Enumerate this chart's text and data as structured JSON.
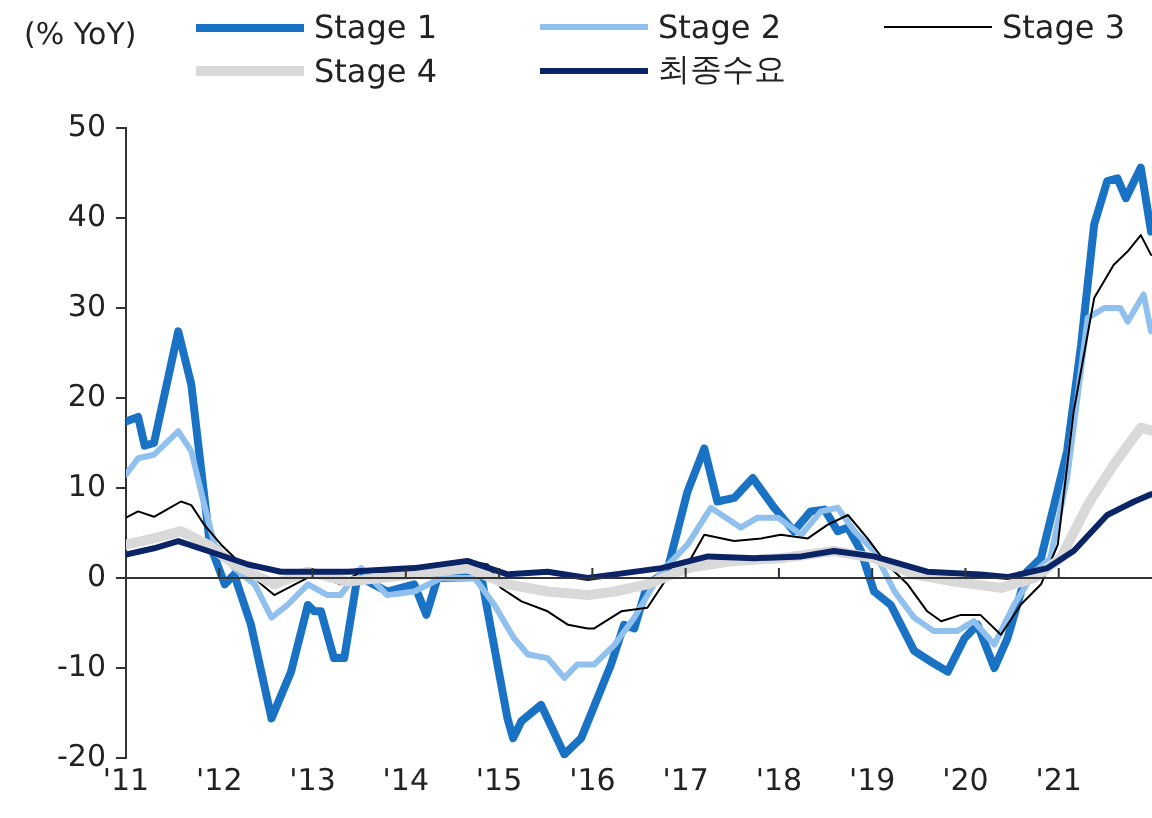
{
  "chart_data": {
    "type": "line",
    "ylabel": "(% YoY)",
    "xlim": [
      2011,
      2022
    ],
    "ylim": [
      -20,
      50
    ],
    "yticks": [
      -20,
      -10,
      0,
      10,
      20,
      30,
      40,
      50
    ],
    "xticks": [
      {
        "value": 2011,
        "label": "'11"
      },
      {
        "value": 2012,
        "label": "'12"
      },
      {
        "value": 2013,
        "label": "'13"
      },
      {
        "value": 2014,
        "label": "'14"
      },
      {
        "value": 2015,
        "label": "'15"
      },
      {
        "value": 2016,
        "label": "'16"
      },
      {
        "value": 2017,
        "label": "'17"
      },
      {
        "value": 2018,
        "label": "'18"
      },
      {
        "value": 2019,
        "label": "'19"
      },
      {
        "value": 2020,
        "label": "'20"
      },
      {
        "value": 2021,
        "label": "'21"
      }
    ],
    "grid": false,
    "ref_lines": [
      {
        "axis": "y",
        "value": 0,
        "color": "#333333"
      }
    ],
    "legend": "top",
    "marker": "none",
    "line_style": "solid",
    "series": [
      {
        "name": "Stage 1",
        "color": "#1a72c4",
        "x": [
          2011.0,
          2011.13,
          2011.2,
          2011.3,
          2011.56,
          2011.7,
          2011.8,
          2011.9,
          2012.06,
          2012.16,
          2012.34,
          2012.56,
          2012.77,
          2012.95,
          2013.02,
          2013.09,
          2013.23,
          2013.34,
          2013.49,
          2013.6,
          2013.8,
          2014.09,
          2014.22,
          2014.34,
          2014.81,
          2015.09,
          2015.15,
          2015.24,
          2015.45,
          2015.7,
          2015.88,
          2016.2,
          2016.34,
          2016.45,
          2016.59,
          2016.8,
          2017.02,
          2017.2,
          2017.34,
          2017.52,
          2017.72,
          2017.95,
          2018.16,
          2018.34,
          2018.49,
          2018.63,
          2018.74,
          2018.88,
          2019.02,
          2019.2,
          2019.45,
          2019.63,
          2019.81,
          2019.99,
          2020.13,
          2020.31,
          2020.45,
          2020.66,
          2020.81,
          2020.95,
          2021.09,
          2021.24,
          2021.38,
          2021.52,
          2021.63,
          2021.72,
          2021.88,
          2021.99
        ],
        "values": [
          17.4,
          17.9,
          14.7,
          15,
          27.4,
          21.5,
          12.6,
          3.7,
          -0.7,
          0.4,
          -5.2,
          -15.6,
          -10.4,
          -3,
          -3.7,
          -3.7,
          -8.9,
          -8.9,
          0.7,
          -0.4,
          -1.5,
          -0.7,
          -4.1,
          0,
          0.1,
          -15.6,
          -17.8,
          -15.9,
          -14.1,
          -19.6,
          -17.8,
          -9.6,
          -5.2,
          -5.6,
          -0.7,
          0.7,
          9.6,
          14.4,
          8.5,
          8.9,
          11.1,
          7.8,
          5.2,
          7.4,
          7.6,
          5.2,
          5.6,
          3,
          -1.5,
          -3,
          -8.1,
          -9.3,
          -10.4,
          -6.7,
          -5.2,
          -10,
          -6.7,
          0.7,
          2.2,
          8.1,
          14.1,
          25.9,
          39.3,
          44.1,
          44.4,
          42.2,
          45.6,
          38.5
        ]
      },
      {
        "name": "Stage 2",
        "color": "#8fc0ee",
        "x": [
          2011.0,
          2011.13,
          2011.3,
          2011.56,
          2011.7,
          2011.84,
          2011.95,
          2012.16,
          2012.38,
          2012.56,
          2012.73,
          2012.95,
          2013.16,
          2013.3,
          2013.52,
          2013.8,
          2014.09,
          2014.38,
          2014.74,
          2014.95,
          2015.16,
          2015.31,
          2015.52,
          2015.7,
          2015.84,
          2016.02,
          2016.24,
          2016.45,
          2016.74,
          2017.02,
          2017.27,
          2017.59,
          2017.77,
          2017.99,
          2018.24,
          2018.45,
          2018.63,
          2018.81,
          2019.02,
          2019.24,
          2019.45,
          2019.66,
          2019.91,
          2020.09,
          2020.31,
          2020.52,
          2020.74,
          2020.91,
          2021.09,
          2021.31,
          2021.49,
          2021.66,
          2021.74,
          2021.91,
          2021.99
        ],
        "values": [
          11.5,
          13.3,
          13.7,
          16.3,
          14.1,
          8.1,
          3.7,
          1.1,
          -0.7,
          -4.4,
          -3,
          -0.7,
          -1.9,
          -1.9,
          1.1,
          -1.9,
          -1.5,
          0,
          0,
          -3,
          -6.7,
          -8.5,
          -8.9,
          -11.1,
          -9.6,
          -9.6,
          -7.4,
          -4.4,
          0.7,
          3.7,
          7.8,
          5.6,
          6.7,
          6.7,
          4.8,
          7.4,
          7.8,
          5.2,
          3,
          -1.5,
          -4.4,
          -5.9,
          -5.9,
          -4.8,
          -7.4,
          -3,
          0.7,
          2.2,
          11.1,
          28.9,
          30,
          30,
          28.5,
          31.5,
          27.4
        ]
      },
      {
        "name": "Stage 3",
        "color": "#000000",
        "x": [
          2011.0,
          2011.13,
          2011.3,
          2011.59,
          2011.7,
          2011.84,
          2012.02,
          2012.24,
          2012.45,
          2012.59,
          2012.81,
          2013.02,
          2013.3,
          2013.52,
          2014.09,
          2014.66,
          2014.88,
          2015.02,
          2015.24,
          2015.52,
          2015.74,
          2015.95,
          2016.02,
          2016.31,
          2016.59,
          2016.8,
          2017.02,
          2017.2,
          2017.52,
          2017.81,
          2018.02,
          2018.31,
          2018.52,
          2018.74,
          2018.95,
          2019.16,
          2019.38,
          2019.59,
          2019.74,
          2019.95,
          2020.16,
          2020.38,
          2020.59,
          2020.81,
          2020.99,
          2021.16,
          2021.38,
          2021.59,
          2021.74,
          2021.88,
          2021.99
        ],
        "values": [
          6.7,
          7.4,
          6.8,
          8.5,
          8.1,
          5.9,
          3.7,
          1.5,
          -0.7,
          -1.9,
          -0.7,
          0.4,
          -0.7,
          0.7,
          0.7,
          1.9,
          1.5,
          -1.1,
          -2.6,
          -3.7,
          -5.2,
          -5.6,
          -5.6,
          -3.7,
          -3.3,
          0,
          1.5,
          4.8,
          4.1,
          4.4,
          4.8,
          4.4,
          5.9,
          7,
          4.4,
          1.5,
          -0.7,
          -3.7,
          -4.8,
          -4.1,
          -4.1,
          -6.3,
          -3,
          -0.7,
          3.7,
          18.5,
          31.1,
          34.8,
          36.3,
          38.1,
          35.9
        ]
      },
      {
        "name": "Stage 4",
        "color": "#d9d9d9",
        "x": [
          2011.0,
          2011.3,
          2011.59,
          2011.88,
          2012.16,
          2012.59,
          2012.95,
          2013.38,
          2014.09,
          2014.66,
          2015.09,
          2015.52,
          2015.95,
          2016.24,
          2016.59,
          2017.02,
          2017.52,
          2018.02,
          2018.59,
          2019.02,
          2019.45,
          2019.88,
          2020.38,
          2020.74,
          2021.02,
          2021.31,
          2021.59,
          2021.88,
          2021.99
        ],
        "values": [
          3.7,
          4.4,
          5.2,
          3.7,
          1.5,
          -0.7,
          0.7,
          -0.4,
          0.4,
          1.1,
          -0.7,
          -1.5,
          -1.9,
          -1.5,
          -0.7,
          1.1,
          1.9,
          2.2,
          3,
          2.2,
          0.4,
          -0.4,
          -1.1,
          0,
          2.2,
          8.1,
          12.6,
          16.7,
          16.4
        ]
      },
      {
        "name": "최종수요",
        "color": "#0b2466",
        "x": [
          2011.0,
          2011.3,
          2011.56,
          2011.88,
          2012.31,
          2012.66,
          2013.38,
          2014.09,
          2014.66,
          2015.09,
          2015.52,
          2015.95,
          2016.24,
          2016.74,
          2017.24,
          2017.74,
          2018.24,
          2018.59,
          2019.02,
          2019.59,
          2020.16,
          2020.45,
          2020.88,
          2021.16,
          2021.52,
          2021.81,
          2021.99
        ],
        "values": [
          2.6,
          3.3,
          4.1,
          3,
          1.5,
          0.7,
          0.7,
          1.1,
          1.9,
          0.4,
          0.7,
          0,
          0.4,
          1.1,
          2.4,
          2.2,
          2.4,
          3,
          2.4,
          0.7,
          0.4,
          0.1,
          1.1,
          3,
          7,
          8.5,
          9.3
        ]
      }
    ]
  }
}
